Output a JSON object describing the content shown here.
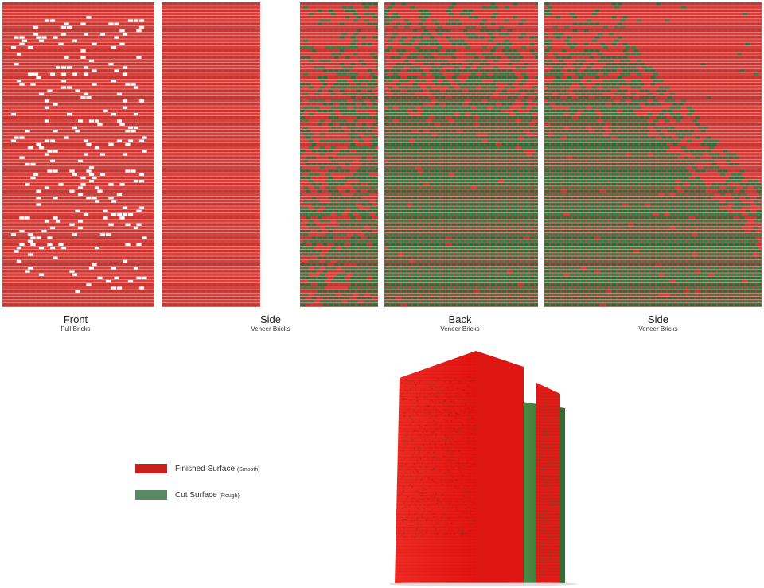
{
  "colors": {
    "finished": "#d8423e",
    "finished_dark": "#c63531",
    "cut": "#3d7b47",
    "cut_dark": "#2f6a3a",
    "hole": "#ffffff",
    "legend_finished": "#c51f1f",
    "legend_cut": "#5a8a64",
    "model_red": "#ee1d1d",
    "model_green": "#3f7a38"
  },
  "elevations": [
    {
      "title": "Front",
      "subtitle": "Full Bricks",
      "pattern": "holes"
    },
    {
      "title": "Side",
      "subtitle": "Veneer Bricks",
      "pattern": "solid"
    },
    {
      "title": "",
      "subtitle": "",
      "pattern": "left-mix"
    },
    {
      "title": "Back",
      "subtitle": "Veneer Bricks",
      "pattern": "mostly-cut"
    },
    {
      "title": "Side",
      "subtitle": "Veneer Bricks",
      "pattern": "diagonal"
    }
  ],
  "legend": [
    {
      "label": "Finished Surface",
      "note": "(Smooth)",
      "swatch": "finished"
    },
    {
      "label": "Cut Surface",
      "note": "(Rough)",
      "swatch": "cut"
    }
  ]
}
